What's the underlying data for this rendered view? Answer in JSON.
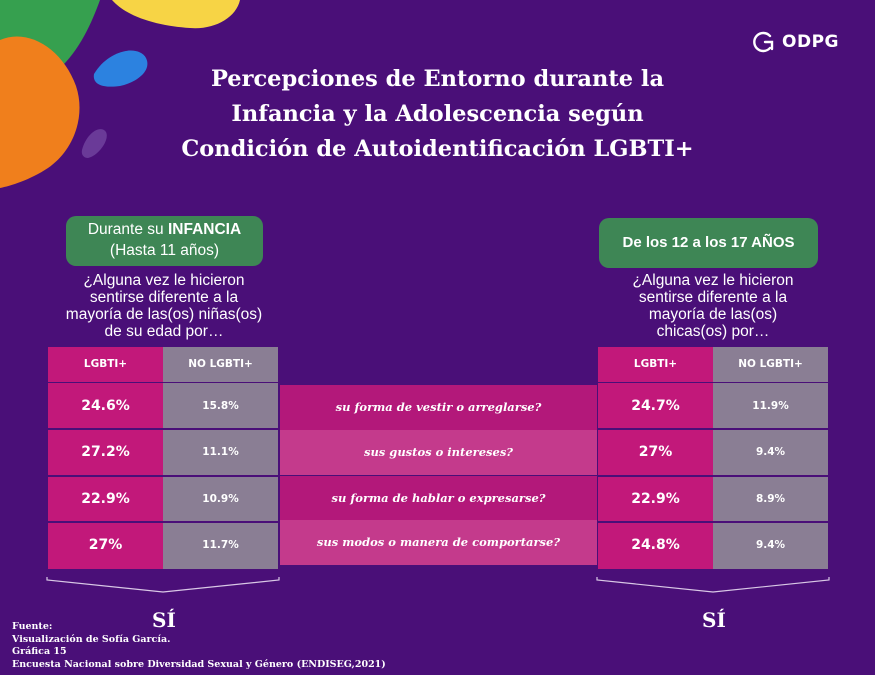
{
  "brand": {
    "name": "ODPG"
  },
  "title_lines": [
    "Percepciones de Entorno durante la",
    "Infancia y la Adolescencia según",
    "Condición de Autoidentificación LGBTI+"
  ],
  "left_panel": {
    "pill_prefix": "Durante su ",
    "pill_bold": "INFANCIA",
    "pill_line2": "(Hasta 11 años)",
    "question_lines": [
      "¿Alguna vez le hicieron",
      "sentirse diferente a la",
      "mayoría de las(os) niñas(os)",
      "de su edad por…"
    ]
  },
  "right_panel": {
    "pill": "De los 12 a los 17 AÑOS",
    "question_lines": [
      "¿Alguna vez le hicieron",
      "sentirse diferente a la",
      "mayoría de las(os)",
      "chicas(os) por…"
    ]
  },
  "columns": [
    "LGBTI+",
    "NO LGBTI+"
  ],
  "answer_label": "SÍ",
  "chart_data": {
    "type": "table",
    "title": "Percepciones de Entorno durante la Infancia y la Adolescencia según Condición de Autoidentificación LGBTI+",
    "categories": [
      "su forma de vestir o arreglarse?",
      "sus gustos o intereses?",
      "su forma de hablar o expresarse?",
      "sus modos o manera de comportarse?"
    ],
    "groups": [
      {
        "name": "Durante su INFANCIA (Hasta 11 años)",
        "series": [
          {
            "name": "LGBTI+",
            "values": [
              "24.6%",
              "27.2%",
              "22.9%",
              "27%"
            ]
          },
          {
            "name": "NO LGBTI+",
            "values": [
              "15.8%",
              "11.1%",
              "10.9%",
              "11.7%"
            ]
          }
        ]
      },
      {
        "name": "De los 12 a los 17 AÑOS",
        "series": [
          {
            "name": "LGBTI+",
            "values": [
              "24.7%",
              "27%",
              "22.9%",
              "24.8%"
            ]
          },
          {
            "name": "NO LGBTI+",
            "values": [
              "11.9%",
              "9.4%",
              "8.9%",
              "9.4%"
            ]
          }
        ]
      }
    ]
  },
  "colors": {
    "background": "#4a0f78",
    "lgbti": "#c2187a",
    "no_lgbti": "#8a7e94",
    "row_dark": "#b3187a",
    "row_light": "#c43a8c",
    "pill_green": "#3e8655"
  },
  "footer_lines": [
    "Fuente:",
    "Visualización de Sofía García.",
    "Gráfica 15",
    "Encuesta Nacional sobre Diversidad Sexual y Género (ENDISEG,2021)"
  ]
}
